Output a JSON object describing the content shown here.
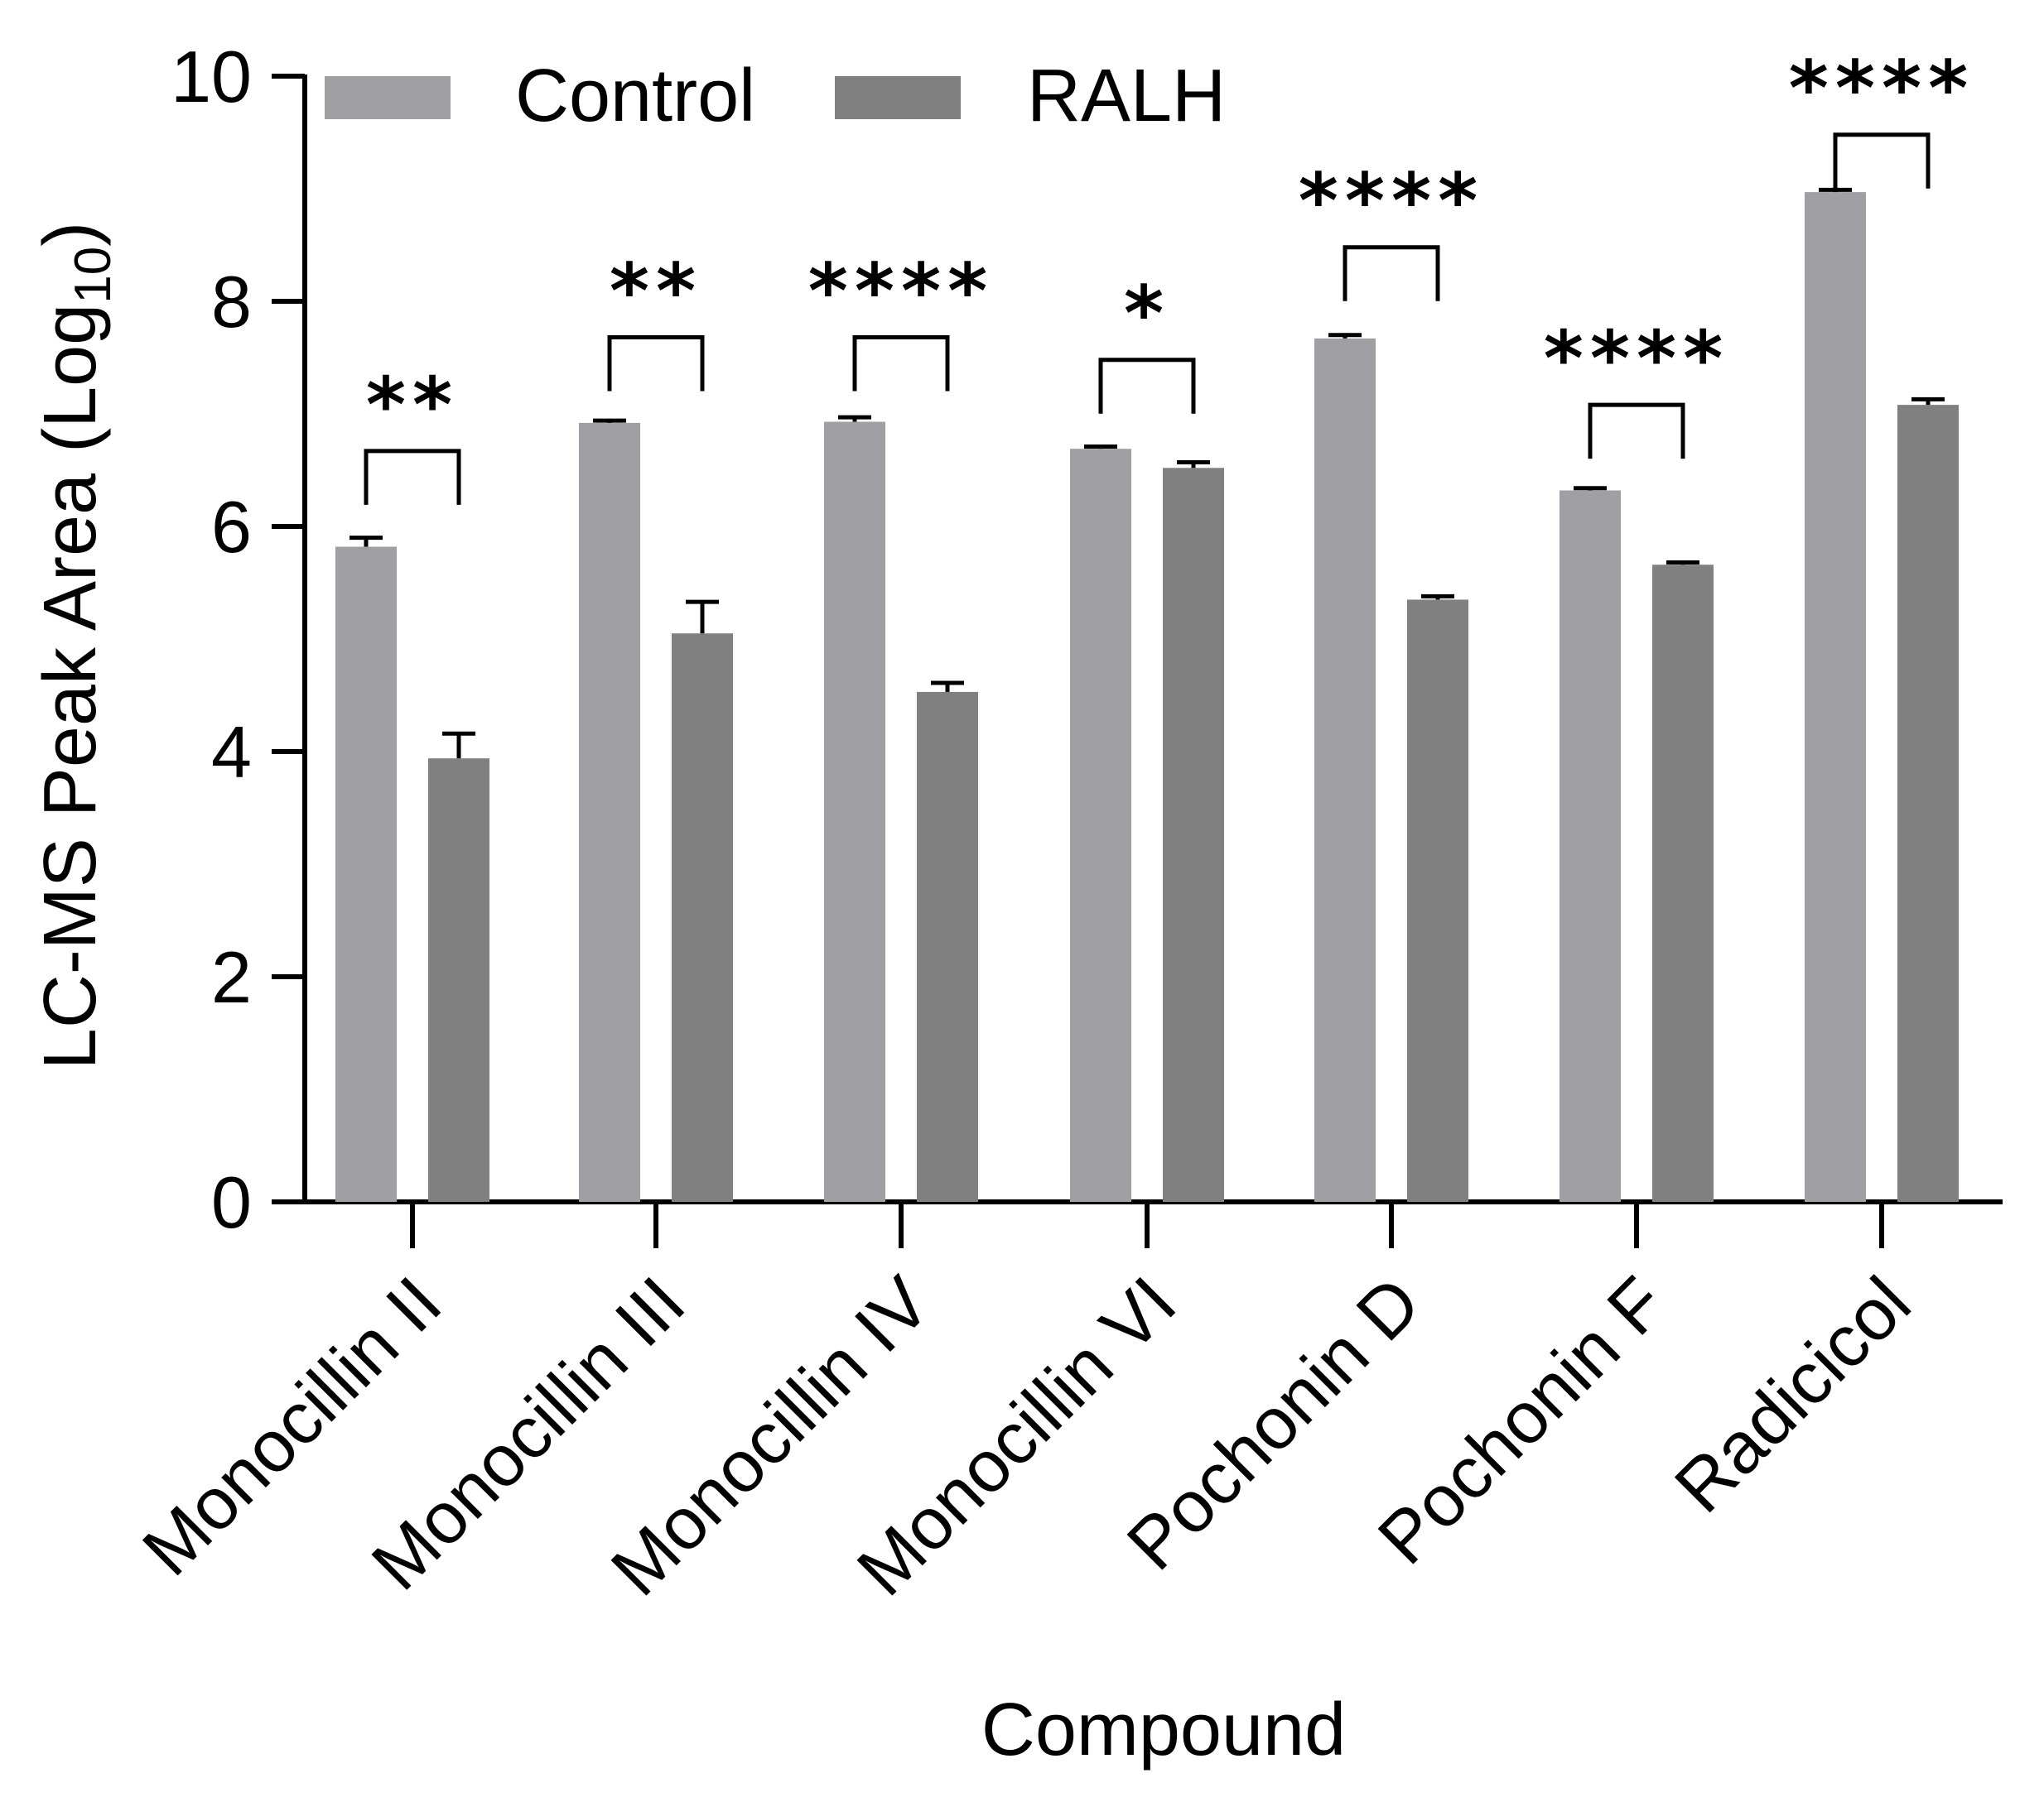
{
  "chart_data": {
    "type": "bar",
    "title": "",
    "xlabel": "Compound",
    "ylabel_main": "LC-MS  Peak Area (Log",
    "ylabel_sub": "10",
    "ylabel_close": ")",
    "ylim": [
      0,
      10
    ],
    "yticks": [
      "0",
      "2",
      "4",
      "6",
      "8",
      "10"
    ],
    "categories": [
      "Monocillin II",
      "Monocillin III",
      "Monocillin IV",
      "Monocillin VI",
      "Pochonin D",
      "Pochonin F",
      "Radicicol"
    ],
    "series": [
      {
        "name": "Control",
        "color": "#a0a0a4",
        "values": [
          5.82,
          6.92,
          6.93,
          6.69,
          7.67,
          6.32,
          8.97
        ],
        "errors": [
          0.08,
          0.02,
          0.04,
          0.02,
          0.03,
          0.02,
          0.02
        ]
      },
      {
        "name": "RALH",
        "color": "#808080",
        "values": [
          3.94,
          5.05,
          4.53,
          6.52,
          5.35,
          5.66,
          7.08
        ],
        "errors": [
          0.22,
          0.28,
          0.08,
          0.05,
          0.03,
          0.02,
          0.05
        ]
      }
    ],
    "significance": [
      {
        "label": "**",
        "bracket_y": 6.67
      },
      {
        "label": "**",
        "bracket_y": 7.68
      },
      {
        "label": "****",
        "bracket_y": 7.68
      },
      {
        "label": "*",
        "bracket_y": 7.48
      },
      {
        "label": "****",
        "bracket_y": 8.48
      },
      {
        "label": "****",
        "bracket_y": 7.08
      },
      {
        "label": "****",
        "bracket_y": 9.48
      }
    ],
    "legend": {
      "position": "top-left",
      "entries": [
        "Control",
        "RALH"
      ]
    }
  }
}
